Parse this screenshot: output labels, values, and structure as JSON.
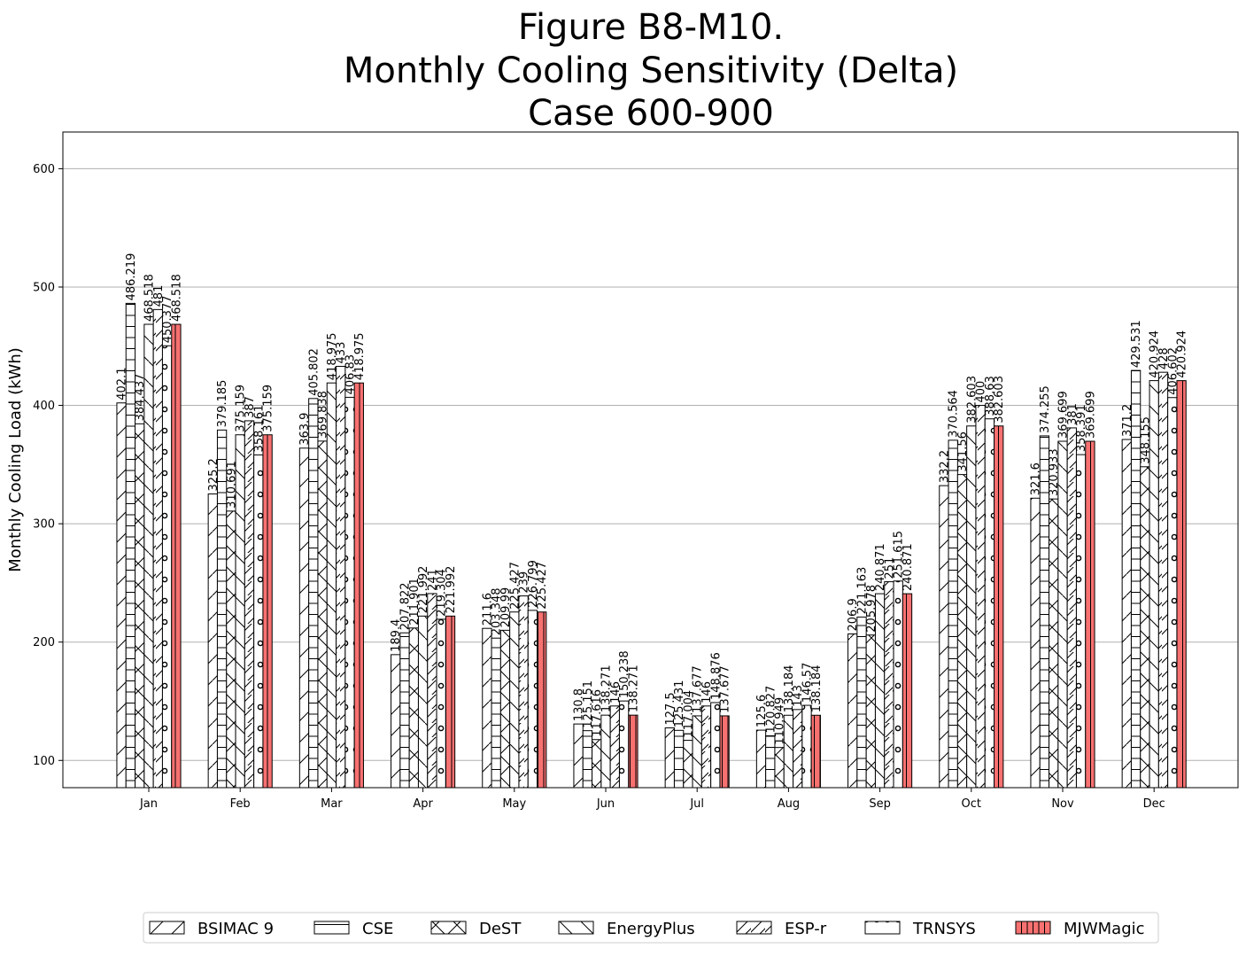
{
  "chart_data": {
    "type": "bar",
    "title_lines": [
      "Figure B8-M10.",
      "Monthly Cooling Sensitivity (Delta)",
      "Case 600-900"
    ],
    "xlabel": "",
    "ylabel": "Monthly Cooling Load (kWh)",
    "ylim": [
      77,
      631
    ],
    "yticks": [
      100,
      200,
      300,
      400,
      500,
      600
    ],
    "grid": true,
    "legend_position": "bottom-center",
    "categories": [
      "Jan",
      "Feb",
      "Mar",
      "Apr",
      "May",
      "Jun",
      "Jul",
      "Aug",
      "Sep",
      "Oct",
      "Nov",
      "Dec"
    ],
    "series": [
      {
        "name": "BSIMAC 9",
        "hatch": "slash-sparse",
        "color": "#ffffff",
        "values": [
          402.1,
          325.2,
          363.9,
          189.4,
          211.6,
          130.8,
          127.5,
          125.6,
          206.9,
          332.2,
          321.6,
          371.2
        ],
        "labels": [
          "402.1",
          "325.2",
          "363.9",
          "189.4",
          "211.6",
          "130.8",
          "127.5",
          "125.6",
          "206.9",
          "332.2",
          "321.6",
          "371.2"
        ]
      },
      {
        "name": "CSE",
        "hatch": "horizontal",
        "color": "#ffffff",
        "values": [
          486.219,
          379.185,
          405.802,
          207.822,
          203.348,
          125.151,
          125.431,
          120.827,
          221.163,
          370.564,
          374.255,
          429.531
        ],
        "labels": [
          "486.219",
          "379.185",
          "405.802",
          "207.822",
          "203.348",
          "125.151",
          "125.431",
          "120.827",
          "221.163",
          "370.564",
          "374.255",
          "429.531"
        ]
      },
      {
        "name": "DeST",
        "hatch": "cross",
        "color": "#ffffff",
        "values": [
          384.437,
          310.691,
          369.838,
          211.901,
          209.99,
          117.616,
          117.004,
          110.949,
          205.978,
          341.56,
          320.933,
          348.155
        ],
        "labels": [
          "384.437",
          "310.691",
          "369.838",
          "211.901",
          "209.99",
          "117.616",
          "117.004",
          "110.949",
          "205.978",
          "341.56",
          "320.933",
          "348.155"
        ]
      },
      {
        "name": "EnergyPlus",
        "hatch": "backslash",
        "color": "#ffffff",
        "values": [
          468.518,
          375.159,
          418.975,
          221.992,
          225.427,
          138.271,
          137.677,
          138.184,
          240.871,
          382.603,
          369.699,
          420.924
        ],
        "labels": [
          "468.518",
          "375.159",
          "418.975",
          "221.992",
          "225.427",
          "138.271",
          "137.677",
          "138.184",
          "240.871",
          "382.603",
          "369.699",
          "420.924"
        ]
      },
      {
        "name": "ESP-r",
        "hatch": "slash-dense",
        "color": "#ffffff",
        "values": [
          481,
          387,
          433,
          241,
          239,
          146,
          146,
          143,
          251,
          400,
          381,
          428
        ],
        "labels": [
          "481",
          "387",
          "433",
          "241",
          "239",
          "146",
          "146",
          "143",
          "251",
          "400",
          "381",
          "428"
        ]
      },
      {
        "name": "TRNSYS",
        "hatch": "circles",
        "color": "#ffffff",
        "values": [
          450.377,
          358.161,
          406.83,
          219.304,
          226.799,
          150.238,
          148.876,
          146.57,
          251.615,
          388.63,
          358.391,
          406.602
        ],
        "labels": [
          "450.377",
          "358.161",
          "406.83",
          "219.304",
          "226.799",
          "150.238",
          "148.876",
          "146.57",
          "251.615",
          "388.63",
          "358.391",
          "406.602"
        ]
      },
      {
        "name": "MJWMagic",
        "hatch": "vertical",
        "color": "#f87171",
        "values": [
          468.518,
          375.159,
          418.975,
          221.992,
          225.427,
          138.271,
          137.677,
          138.184,
          240.871,
          382.603,
          369.699,
          420.924
        ],
        "labels": [
          "468.518",
          "375.159",
          "418.975",
          "221.992",
          "225.427",
          "138.271",
          "137.677",
          "138.184",
          "240.871",
          "382.603",
          "369.699",
          "420.924"
        ]
      }
    ]
  }
}
